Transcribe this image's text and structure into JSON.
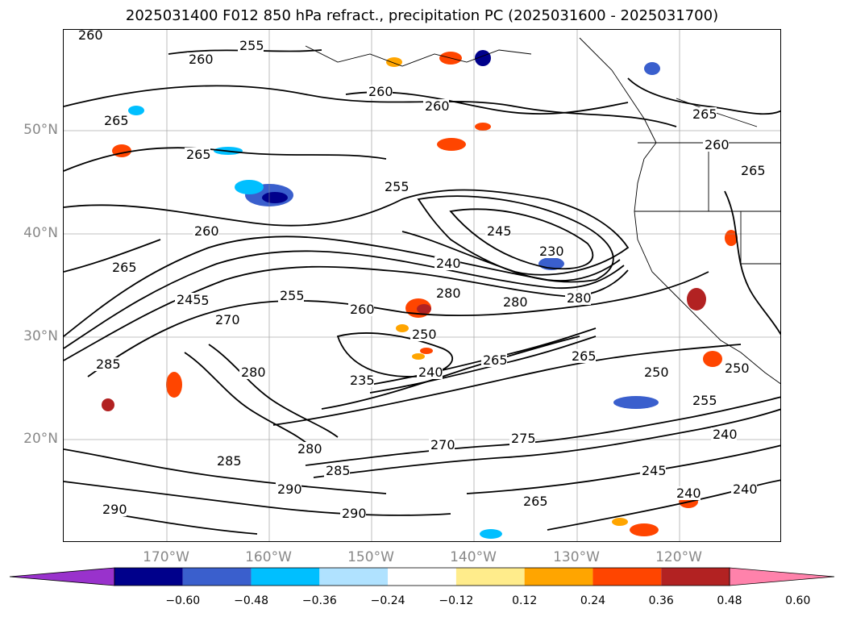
{
  "title": "2025031400 F012 850 hPa refract., precipitation PC (2025031600 - 2025031700)",
  "lat_labels": [
    "50°N",
    "40°N",
    "30°N",
    "20°N"
  ],
  "lon_labels": [
    "170°W",
    "160°W",
    "150°W",
    "140°W",
    "130°W",
    "120°W"
  ],
  "contour_labels": [
    "260",
    "255",
    "260",
    "260",
    "260",
    "265",
    "265",
    "265",
    "260",
    "265",
    "265",
    "260",
    "255",
    "245",
    "240",
    "230",
    "280",
    "280",
    "280",
    "260",
    "255",
    "255",
    "245",
    "270",
    "285",
    "280",
    "235",
    "240",
    "250",
    "265",
    "265",
    "250",
    "255",
    "250",
    "240",
    "245",
    "240",
    "240",
    "280",
    "270",
    "275",
    "285",
    "290",
    "290",
    "285",
    "290",
    "265"
  ],
  "colorbar": {
    "ticks": [
      "−0.60",
      "−0.48",
      "−0.36",
      "−0.24",
      "−0.12",
      "0.12",
      "0.24",
      "0.36",
      "0.48",
      "0.60"
    ],
    "colors": [
      "#9932CC",
      "#00008B",
      "#3A5FCD",
      "#00BFFF",
      "#B0E2FF",
      "#FFFFFF",
      "#FFEC8B",
      "#FFA500",
      "#FF4500",
      "#B22222",
      "#FF82AB"
    ]
  },
  "map": {
    "region": "North Pacific / western North America",
    "field": "850 hPa refractivity contours with precipitation PC shading",
    "gridlines": true,
    "contour_color": "#000000"
  }
}
